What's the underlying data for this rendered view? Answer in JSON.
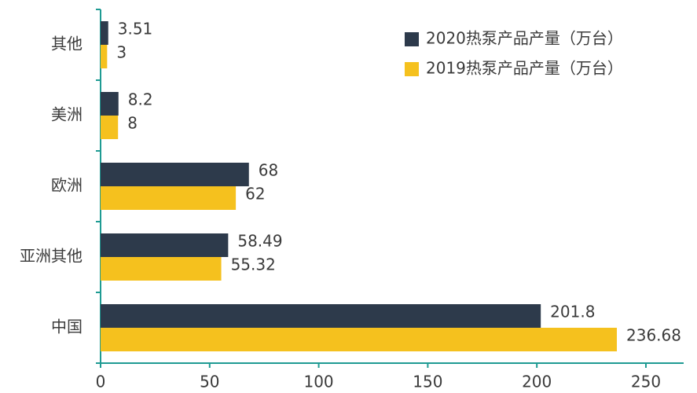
{
  "chart_data": {
    "type": "bar",
    "orientation": "horizontal",
    "categories": [
      "其他",
      "美洲",
      "欧洲",
      "亚洲其他",
      "中国"
    ],
    "series": [
      {
        "name": "2020热泵产品产量（万台）",
        "color": "#2d3a4b",
        "values": [
          3.51,
          8.2,
          68,
          58.49,
          201.8
        ]
      },
      {
        "name": "2019热泵产品产量（万台）",
        "color": "#f5c11e",
        "values": [
          3,
          8,
          62,
          55.32,
          236.68
        ]
      }
    ],
    "xlim": [
      0,
      270
    ],
    "xticks": [
      0,
      50,
      100,
      150,
      200,
      250
    ],
    "legend": "upper right",
    "axis_color": "#1f9b93"
  }
}
